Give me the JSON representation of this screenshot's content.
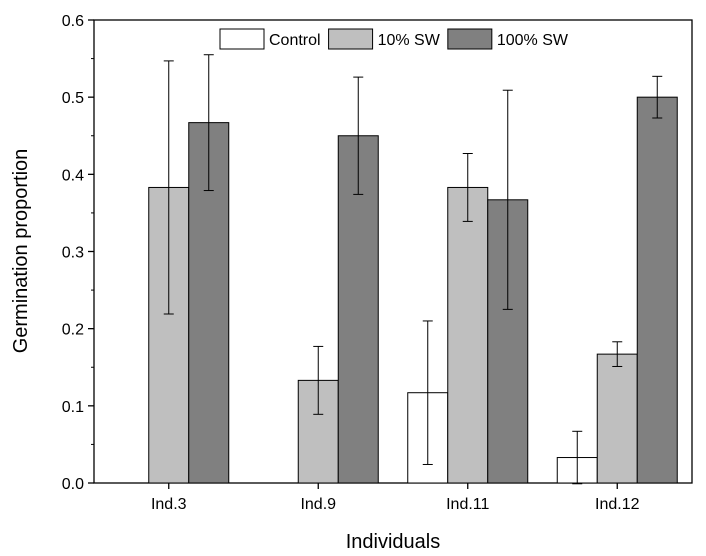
{
  "chart_data": {
    "type": "bar",
    "title": "",
    "xlabel": "Individuals",
    "ylabel": "Germination proportion",
    "ylim": [
      0,
      0.6
    ],
    "yticks": [
      "0.0",
      "0.1",
      "0.2",
      "0.3",
      "0.4",
      "0.5",
      "0.6"
    ],
    "categories": [
      "Ind.3",
      "Ind.9",
      "Ind.11",
      "Ind.12"
    ],
    "series": [
      {
        "name": "Control",
        "color": "#ffffff",
        "values": [
          0,
          0,
          0.117,
          0.033
        ],
        "errors": [
          0,
          0,
          0.093,
          0.034
        ]
      },
      {
        "name": "10% SW",
        "color": "#bfbfbf",
        "values": [
          0.383,
          0.133,
          0.383,
          0.167
        ],
        "errors": [
          0.164,
          0.044,
          0.044,
          0.016
        ]
      },
      {
        "name": "100% SW",
        "color": "#808080",
        "values": [
          0.467,
          0.45,
          0.367,
          0.5
        ],
        "errors": [
          0.088,
          0.076,
          0.142,
          0.027
        ]
      }
    ],
    "legend": {
      "position": "top",
      "orientation": "horizontal"
    },
    "grid": false,
    "error_bars": true
  }
}
